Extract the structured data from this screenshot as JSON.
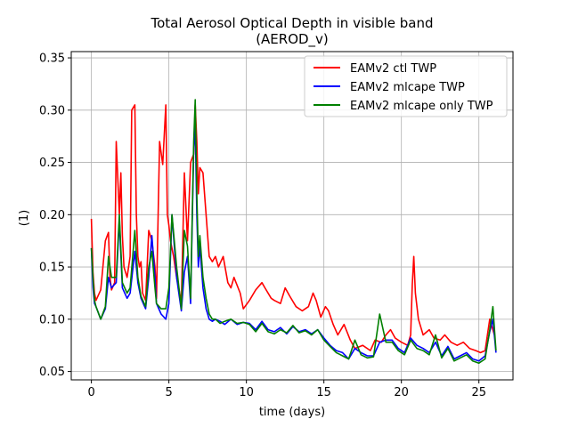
{
  "chart_data": {
    "type": "line",
    "title_line1": "Total Aerosol Optical Depth in visible band",
    "title_line2": "(AEROD_v)",
    "xlabel": "time (days)",
    "ylabel": "(1)",
    "xlim": [
      -1.3,
      27.2
    ],
    "ylim": [
      0.042,
      0.356
    ],
    "xticks": [
      0,
      5,
      10,
      15,
      20,
      25
    ],
    "yticks": [
      0.05,
      0.1,
      0.15,
      0.2,
      0.25,
      0.3,
      0.35
    ],
    "ytick_labels": [
      "0.05",
      "0.10",
      "0.15",
      "0.20",
      "0.25",
      "0.30",
      "0.35"
    ],
    "grid": true,
    "legend_position": "upper right",
    "series": [
      {
        "name": "EAMv2 ctl TWP",
        "color": "#ff0000",
        "x": [
          0.0,
          0.1,
          0.2,
          0.3,
          0.6,
          0.9,
          1.1,
          1.2,
          1.3,
          1.5,
          1.6,
          1.8,
          1.9,
          2.0,
          2.1,
          2.3,
          2.5,
          2.6,
          2.8,
          2.9,
          3.0,
          3.1,
          3.2,
          3.3,
          3.5,
          3.7,
          3.9,
          4.1,
          4.2,
          4.4,
          4.6,
          4.8,
          4.9,
          5.0,
          5.1,
          5.3,
          5.5,
          5.7,
          5.8,
          6.0,
          6.2,
          6.4,
          6.6,
          6.7,
          6.8,
          6.9,
          7.0,
          7.2,
          7.4,
          7.6,
          7.8,
          8.0,
          8.2,
          8.5,
          8.8,
          9.0,
          9.2,
          9.6,
          9.8,
          10.2,
          10.6,
          11.0,
          11.2,
          11.6,
          11.8,
          12.2,
          12.5,
          12.8,
          13.2,
          13.6,
          14.0,
          14.3,
          14.5,
          14.8,
          15.1,
          15.3,
          15.6,
          15.9,
          16.3,
          16.7,
          17.0,
          17.5,
          18.0,
          18.3,
          18.7,
          19.0,
          19.3,
          19.6,
          20.0,
          20.4,
          20.6,
          20.7,
          20.8,
          20.9,
          21.1,
          21.4,
          21.8,
          22.1,
          22.5,
          22.8,
          23.2,
          23.6,
          24.0,
          24.4,
          24.8,
          25.1,
          25.4,
          25.7,
          26.0
        ],
        "y": [
          0.196,
          0.145,
          0.125,
          0.118,
          0.128,
          0.175,
          0.183,
          0.14,
          0.128,
          0.135,
          0.27,
          0.2,
          0.24,
          0.18,
          0.15,
          0.14,
          0.16,
          0.3,
          0.305,
          0.2,
          0.16,
          0.15,
          0.155,
          0.125,
          0.118,
          0.185,
          0.175,
          0.15,
          0.12,
          0.27,
          0.248,
          0.305,
          0.2,
          0.19,
          0.175,
          0.16,
          0.14,
          0.125,
          0.115,
          0.24,
          0.175,
          0.25,
          0.258,
          0.305,
          0.27,
          0.22,
          0.245,
          0.24,
          0.2,
          0.16,
          0.155,
          0.16,
          0.15,
          0.16,
          0.135,
          0.13,
          0.14,
          0.125,
          0.11,
          0.118,
          0.128,
          0.135,
          0.13,
          0.12,
          0.118,
          0.115,
          0.13,
          0.122,
          0.112,
          0.108,
          0.112,
          0.125,
          0.118,
          0.102,
          0.112,
          0.108,
          0.095,
          0.085,
          0.095,
          0.08,
          0.072,
          0.075,
          0.07,
          0.08,
          0.078,
          0.085,
          0.09,
          0.082,
          0.078,
          0.075,
          0.085,
          0.133,
          0.16,
          0.125,
          0.1,
          0.085,
          0.09,
          0.082,
          0.08,
          0.085,
          0.078,
          0.075,
          0.078,
          0.072,
          0.07,
          0.068,
          0.07,
          0.1,
          0.085
        ]
      },
      {
        "name": "EAMv2 mlcape TWP",
        "color": "#0000ff",
        "x": [
          0.0,
          0.1,
          0.2,
          0.3,
          0.6,
          0.9,
          1.1,
          1.3,
          1.6,
          1.8,
          2.0,
          2.3,
          2.5,
          2.8,
          3.0,
          3.2,
          3.5,
          3.7,
          3.9,
          4.1,
          4.2,
          4.5,
          4.8,
          5.0,
          5.2,
          5.5,
          5.8,
          6.0,
          6.2,
          6.4,
          6.6,
          6.7,
          6.8,
          6.9,
          7.0,
          7.2,
          7.4,
          7.6,
          7.8,
          8.0,
          8.3,
          8.6,
          9.0,
          9.4,
          9.8,
          10.2,
          10.6,
          11.0,
          11.4,
          11.8,
          12.2,
          12.6,
          13.0,
          13.4,
          13.8,
          14.2,
          14.6,
          15.0,
          15.4,
          15.8,
          16.2,
          16.6,
          17.0,
          17.4,
          17.8,
          18.2,
          18.6,
          19.0,
          19.4,
          19.8,
          20.2,
          20.6,
          21.0,
          21.4,
          21.8,
          22.2,
          22.6,
          23.0,
          23.4,
          23.8,
          24.2,
          24.6,
          25.0,
          25.4,
          25.7,
          25.9,
          26.1
        ],
        "y": [
          0.168,
          0.13,
          0.115,
          0.112,
          0.1,
          0.11,
          0.14,
          0.13,
          0.135,
          0.195,
          0.13,
          0.12,
          0.125,
          0.165,
          0.135,
          0.12,
          0.11,
          0.14,
          0.18,
          0.14,
          0.115,
          0.105,
          0.1,
          0.115,
          0.2,
          0.14,
          0.108,
          0.145,
          0.16,
          0.115,
          0.262,
          0.285,
          0.2,
          0.15,
          0.17,
          0.13,
          0.11,
          0.1,
          0.098,
          0.1,
          0.098,
          0.095,
          0.1,
          0.095,
          0.097,
          0.096,
          0.09,
          0.098,
          0.09,
          0.088,
          0.092,
          0.086,
          0.093,
          0.088,
          0.09,
          0.086,
          0.09,
          0.082,
          0.075,
          0.07,
          0.068,
          0.062,
          0.072,
          0.068,
          0.065,
          0.065,
          0.078,
          0.08,
          0.08,
          0.072,
          0.068,
          0.082,
          0.075,
          0.072,
          0.068,
          0.078,
          0.065,
          0.074,
          0.062,
          0.065,
          0.068,
          0.062,
          0.06,
          0.065,
          0.088,
          0.1,
          0.068
        ]
      },
      {
        "name": "EAMv2 mlcape only TWP",
        "color": "#008000",
        "x": [
          0.0,
          0.1,
          0.2,
          0.3,
          0.6,
          0.9,
          1.1,
          1.3,
          1.6,
          1.8,
          2.0,
          2.3,
          2.5,
          2.8,
          3.0,
          3.2,
          3.5,
          3.7,
          3.9,
          4.1,
          4.2,
          4.5,
          4.8,
          5.0,
          5.2,
          5.5,
          5.8,
          6.0,
          6.2,
          6.4,
          6.6,
          6.7,
          6.8,
          6.9,
          7.0,
          7.2,
          7.4,
          7.6,
          7.8,
          8.0,
          8.3,
          8.6,
          9.0,
          9.4,
          9.8,
          10.2,
          10.6,
          11.0,
          11.4,
          11.8,
          12.2,
          12.6,
          13.0,
          13.4,
          13.8,
          14.2,
          14.6,
          15.0,
          15.4,
          15.8,
          16.2,
          16.6,
          17.0,
          17.4,
          17.8,
          18.2,
          18.6,
          19.0,
          19.4,
          19.8,
          20.2,
          20.6,
          21.0,
          21.4,
          21.8,
          22.2,
          22.6,
          23.0,
          23.4,
          23.8,
          24.2,
          24.6,
          25.0,
          25.4,
          25.7,
          25.9,
          26.1
        ],
        "y": [
          0.168,
          0.14,
          0.118,
          0.112,
          0.1,
          0.112,
          0.16,
          0.14,
          0.14,
          0.2,
          0.135,
          0.125,
          0.13,
          0.185,
          0.14,
          0.122,
          0.112,
          0.15,
          0.165,
          0.13,
          0.115,
          0.11,
          0.11,
          0.13,
          0.2,
          0.15,
          0.11,
          0.185,
          0.17,
          0.12,
          0.27,
          0.31,
          0.22,
          0.16,
          0.18,
          0.14,
          0.12,
          0.105,
          0.1,
          0.1,
          0.096,
          0.098,
          0.1,
          0.096,
          0.097,
          0.095,
          0.088,
          0.096,
          0.088,
          0.086,
          0.09,
          0.087,
          0.094,
          0.087,
          0.089,
          0.085,
          0.09,
          0.08,
          0.074,
          0.068,
          0.065,
          0.062,
          0.08,
          0.066,
          0.063,
          0.064,
          0.105,
          0.078,
          0.078,
          0.07,
          0.066,
          0.08,
          0.072,
          0.07,
          0.066,
          0.085,
          0.063,
          0.072,
          0.06,
          0.063,
          0.066,
          0.06,
          0.058,
          0.062,
          0.09,
          0.112,
          0.07
        ]
      }
    ]
  }
}
